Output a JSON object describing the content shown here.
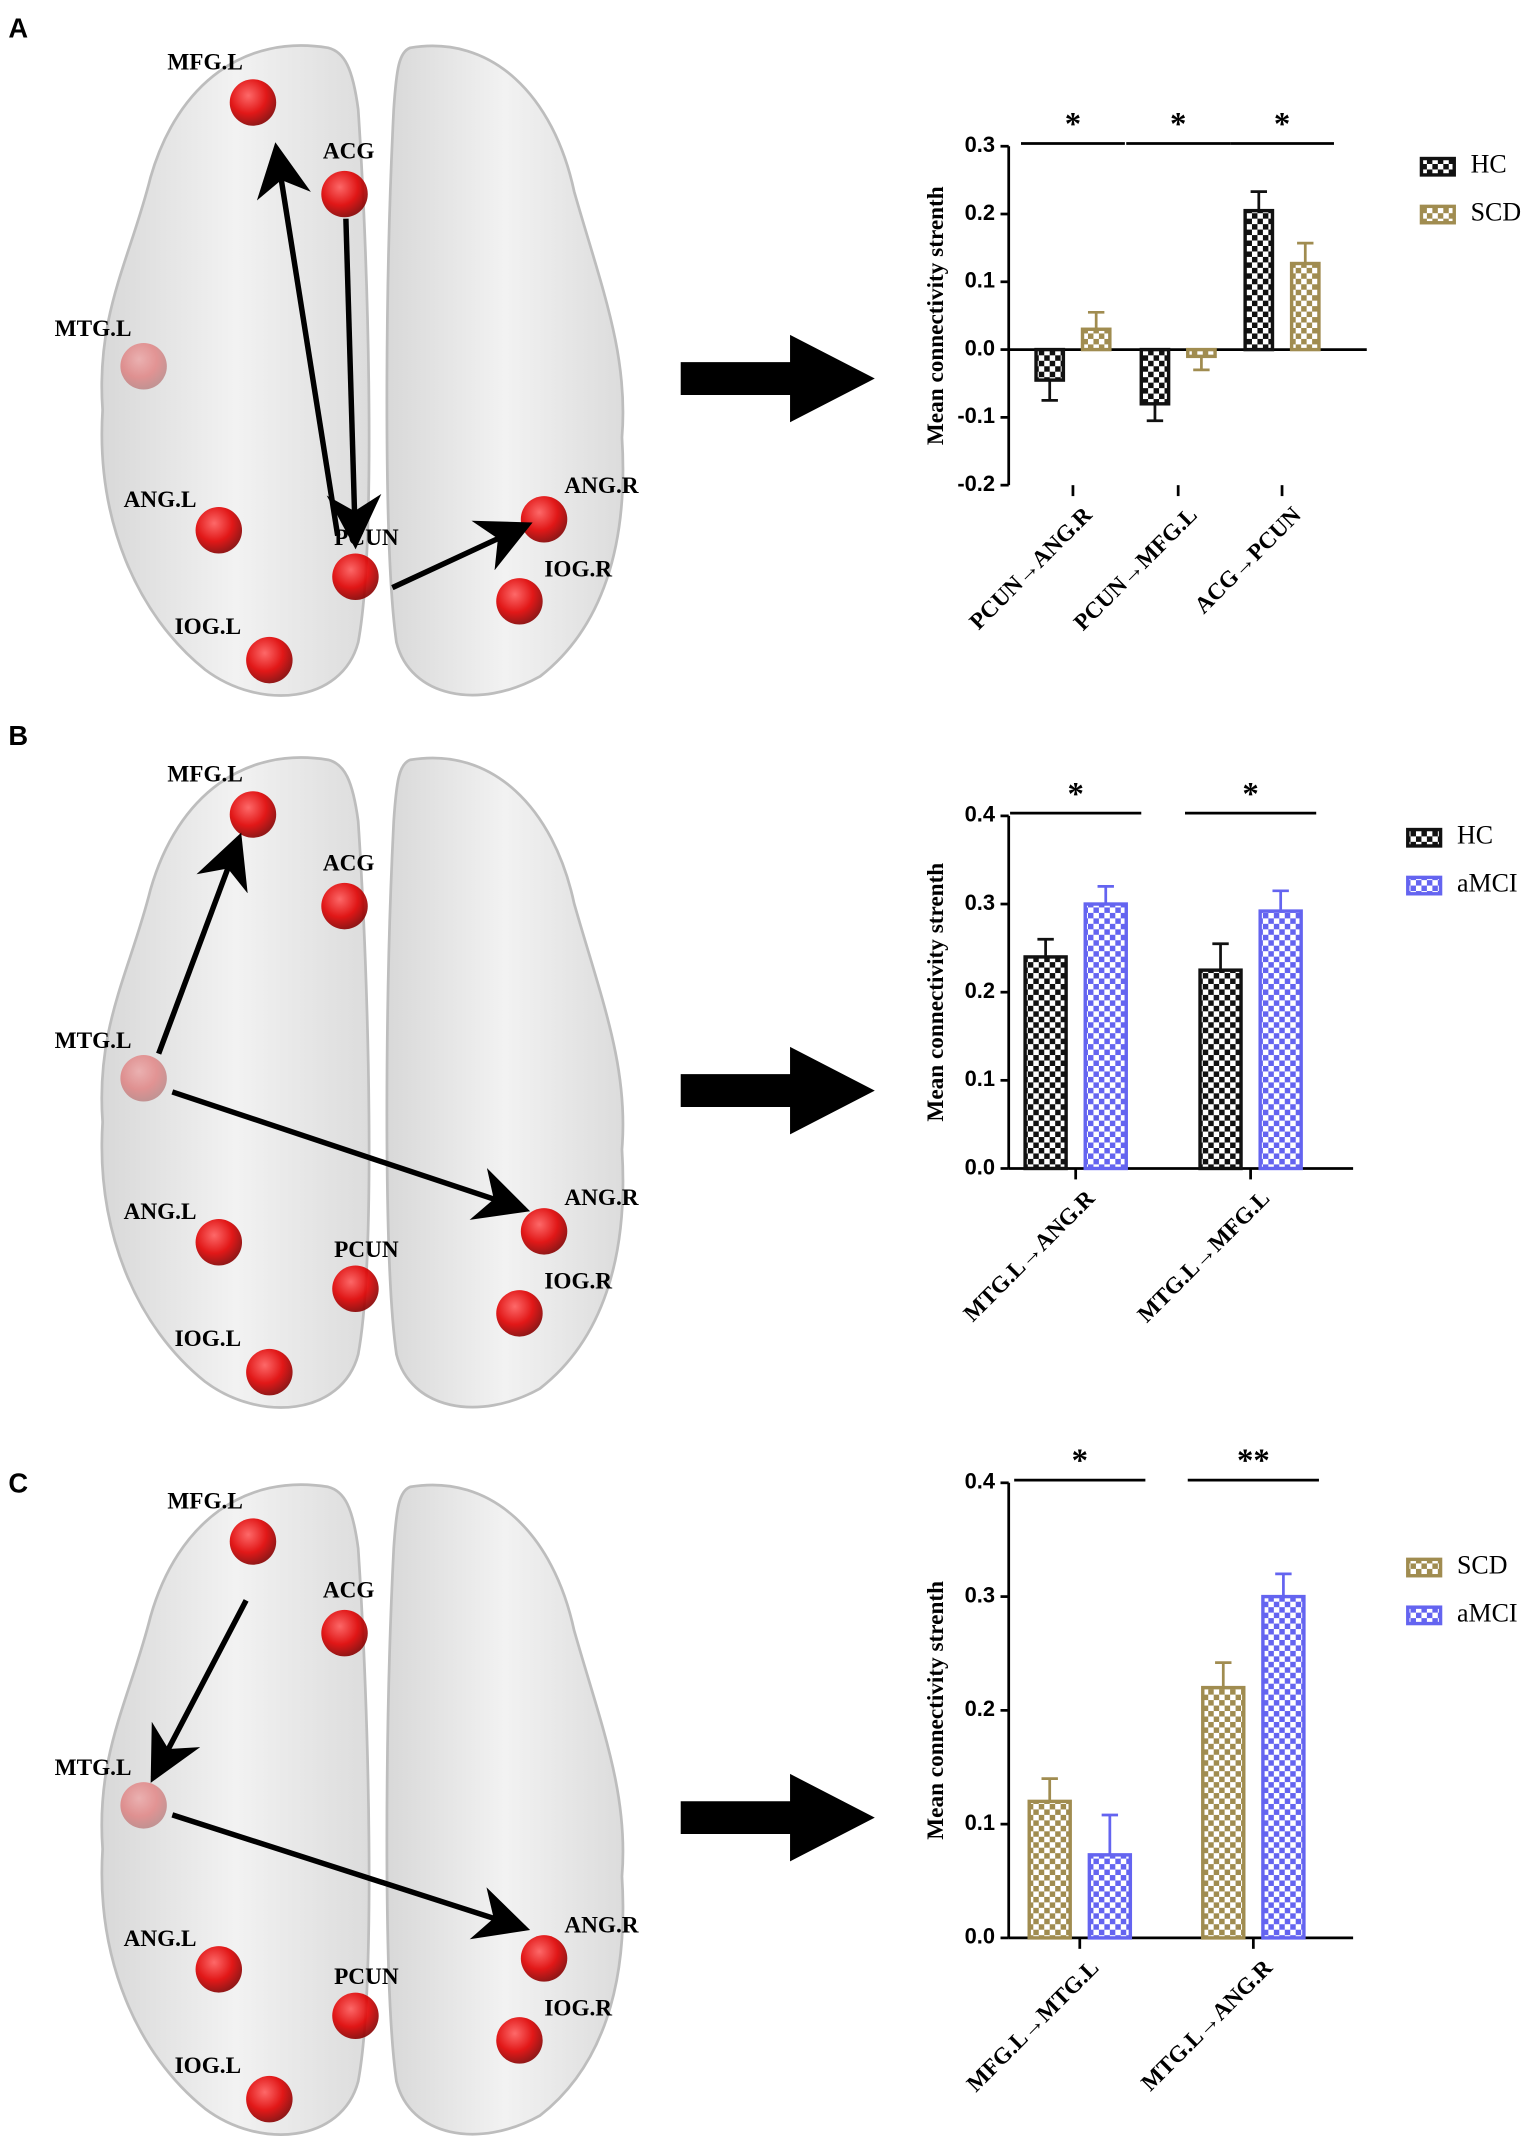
{
  "figure": {
    "panels": [
      {
        "letter": "A",
        "nodes": [
          "MFG.L",
          "ACG",
          "MTG.L",
          "ANG.L",
          "PCUN",
          "ANG.R",
          "IOG.R",
          "IOG.L"
        ]
      },
      {
        "letter": "B",
        "nodes": [
          "MFG.L",
          "ACG",
          "MTG.L",
          "ANG.L",
          "PCUN",
          "ANG.R",
          "IOG.R",
          "IOG.L"
        ]
      },
      {
        "letter": "C",
        "nodes": [
          "MFG.L",
          "ACG",
          "MTG.L",
          "ANG.L",
          "PCUN",
          "ANG.R",
          "IOG.R",
          "IOG.L"
        ]
      }
    ]
  },
  "chart_data": [
    {
      "type": "bar",
      "ylabel": "Mean connectivity strenth",
      "categories": [
        "PCUN→ANG.R",
        "PCUN→MFG.L",
        "ACG→PCUN"
      ],
      "significance": [
        "*",
        "*",
        "*"
      ],
      "series": [
        {
          "name": "HC",
          "color": "#111111",
          "values": [
            -0.045,
            -0.08,
            0.205
          ],
          "errors": [
            0.03,
            0.025,
            0.028
          ]
        },
        {
          "name": "SCD",
          "color": "#a08c50",
          "values": [
            0.03,
            -0.01,
            0.127
          ],
          "errors": [
            0.025,
            0.02,
            0.03
          ]
        }
      ],
      "ylim": [
        -0.2,
        0.3
      ],
      "yticks": [
        -0.2,
        -0.1,
        {
          "value": 0,
          "label": "0.0"
        },
        0.1,
        0.2,
        0.3
      ]
    },
    {
      "type": "bar",
      "ylabel": "Mean connectivity strenth",
      "categories": [
        "MTG.L→ANG.R",
        "MTG.L→MFG.L"
      ],
      "significance": [
        "*",
        "*"
      ],
      "series": [
        {
          "name": "HC",
          "color": "#111111",
          "values": [
            0.24,
            0.225
          ],
          "errors": [
            0.02,
            0.03
          ]
        },
        {
          "name": "aMCI",
          "color": "#6464f0",
          "values": [
            0.3,
            0.292
          ],
          "errors": [
            0.02,
            0.023
          ]
        }
      ],
      "ylim": [
        0,
        0.4
      ],
      "yticks": [
        {
          "value": 0,
          "label": "0.0"
        },
        0.1,
        0.2,
        0.3,
        0.4
      ]
    },
    {
      "type": "bar",
      "ylabel": "Mean connectivity strenth",
      "categories": [
        "MFG.L→MTG.L",
        "MTG.L→ANG.R"
      ],
      "significance": [
        "*",
        "**"
      ],
      "series": [
        {
          "name": "SCD",
          "color": "#a08c50",
          "values": [
            0.12,
            0.22
          ],
          "errors": [
            0.02,
            0.022
          ]
        },
        {
          "name": "aMCI",
          "color": "#6464f0",
          "values": [
            0.073,
            0.3
          ],
          "errors": [
            0.035,
            0.02
          ]
        }
      ],
      "ylim": [
        0,
        0.4
      ],
      "yticks": [
        {
          "value": 0,
          "label": "0.0"
        },
        0.1,
        0.2,
        0.3,
        0.4
      ]
    }
  ]
}
